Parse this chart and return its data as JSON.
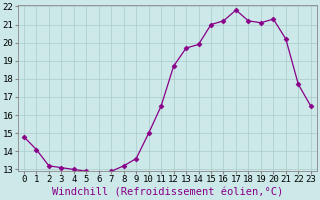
{
  "x": [
    0,
    1,
    2,
    3,
    4,
    5,
    6,
    7,
    8,
    9,
    10,
    11,
    12,
    13,
    14,
    15,
    16,
    17,
    18,
    19,
    20,
    21,
    22,
    23
  ],
  "y": [
    14.8,
    14.1,
    13.2,
    13.1,
    13.0,
    12.9,
    12.8,
    12.9,
    13.2,
    13.6,
    15.0,
    16.5,
    18.7,
    19.7,
    19.9,
    21.0,
    21.2,
    21.8,
    21.2,
    21.1,
    21.3,
    20.2,
    17.7,
    16.5
  ],
  "ylim": [
    13,
    22
  ],
  "xlim": [
    -0.5,
    23.5
  ],
  "yticks": [
    13,
    14,
    15,
    16,
    17,
    18,
    19,
    20,
    21,
    22
  ],
  "xticks": [
    0,
    1,
    2,
    3,
    4,
    5,
    6,
    7,
    8,
    9,
    10,
    11,
    12,
    13,
    14,
    15,
    16,
    17,
    18,
    19,
    20,
    21,
    22,
    23
  ],
  "xlabel": "Windchill (Refroidissement éolien,°C)",
  "line_color": "#880088",
  "marker": "D",
  "marker_size": 2.5,
  "background_color": "#cce8e8",
  "grid_color": "#aacccc",
  "tick_label_fontsize": 6.5,
  "xlabel_fontsize": 7.5
}
